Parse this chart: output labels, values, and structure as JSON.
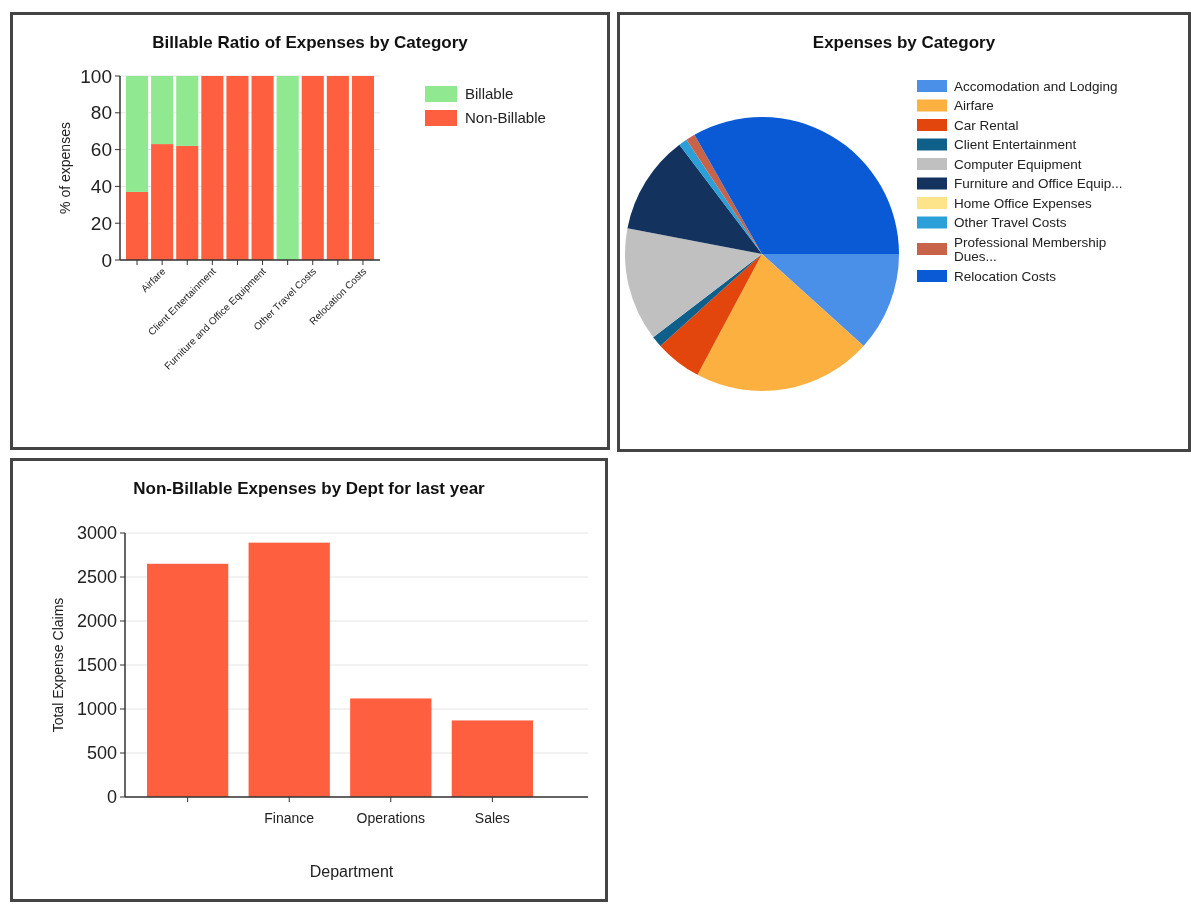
{
  "chart_data": [
    {
      "type": "bar",
      "title": "Billable Ratio of Expenses by Category",
      "ylabel": "% of expenses",
      "stacked": true,
      "categories": [
        null,
        "Airfare",
        null,
        "Client Entertainment",
        null,
        "Furniture and Office Equipment",
        null,
        "Other Travel Costs",
        null,
        "Relocation Costs"
      ],
      "series": [
        {
          "name": "Non-Billable",
          "color": "#fe5f3f",
          "values": [
            37,
            63,
            62,
            100,
            100,
            100,
            0,
            100,
            100,
            100
          ]
        },
        {
          "name": "Billable",
          "color": "#90e990",
          "values": [
            63,
            37,
            38,
            0,
            0,
            0,
            100,
            0,
            0,
            0
          ]
        }
      ],
      "ylim": [
        0,
        100
      ],
      "yticks": [
        0,
        20,
        40,
        60,
        80,
        100
      ],
      "grid": "y",
      "legend": "top right"
    },
    {
      "type": "pie",
      "title": "Expenses by Category",
      "categories": [
        "Accomodation and Lodging",
        "Airfare",
        "Car Rental",
        "Client Entertainment",
        "Computer Equipment",
        "Furniture and Office Equip...",
        "Home Office Expenses",
        "Other Travel Costs",
        "Professional Membership Dues...",
        "Relocation Costs"
      ],
      "values": [
        11.7,
        21.1,
        5.5,
        1.3,
        13.4,
        11.7,
        0,
        1.0,
        1.1,
        33.2
      ],
      "colors": [
        "#4a90e8",
        "#fbb040",
        "#e2460c",
        "#0e5f8a",
        "#c0c0c0",
        "#13325e",
        "#fde38a",
        "#2b9fd8",
        "#c8634a",
        "#0a5ad6"
      ],
      "legend": "right"
    },
    {
      "type": "bar",
      "title": "Non-Billable Expenses by Dept for last year",
      "xlabel": "Department",
      "ylabel": "Total Expense Claims",
      "categories": [
        null,
        "Finance",
        "Operations",
        "Sales"
      ],
      "series": [
        {
          "color": "#fe5f3f",
          "values": [
            2650,
            2890,
            1120,
            870
          ]
        }
      ],
      "ylim": [
        0,
        3000
      ],
      "yticks": [
        0,
        500,
        1000,
        1500,
        2000,
        2500,
        3000
      ],
      "grid": "y"
    }
  ]
}
